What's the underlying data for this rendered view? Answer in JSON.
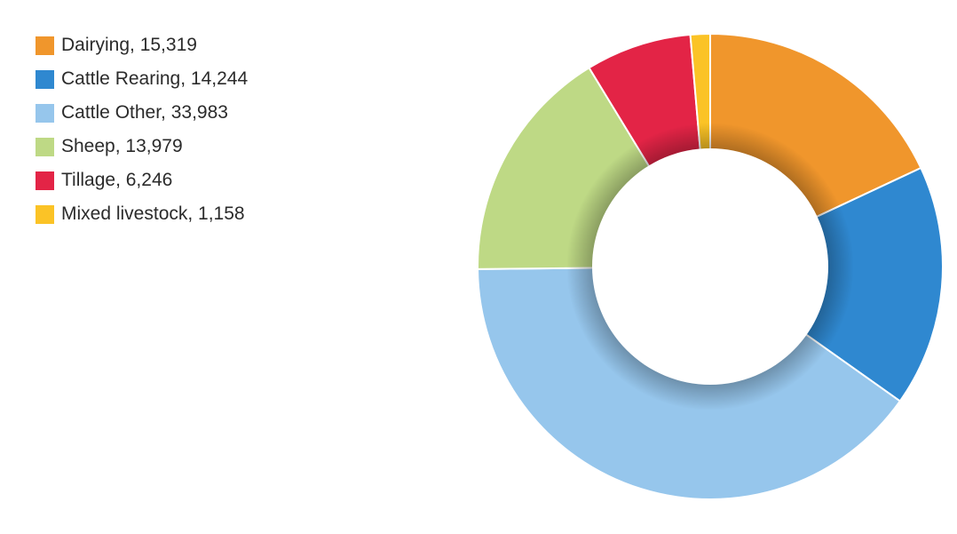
{
  "chart_data": {
    "type": "pie",
    "variant": "donut",
    "legend_position": "top-left",
    "series": [
      {
        "name": "Dairying",
        "label": "Dairying, 15,319",
        "value": 15319,
        "color": "#F0962C"
      },
      {
        "name": "Cattle Rearing",
        "label": "Cattle Rearing, 14,244",
        "value": 14244,
        "color": "#2F88D0"
      },
      {
        "name": "Cattle Other",
        "label": "Cattle Other, 33,983",
        "value": 33983,
        "color": "#96C6EC"
      },
      {
        "name": "Sheep",
        "label": "Sheep, 13,979",
        "value": 13979,
        "color": "#BED985"
      },
      {
        "name": "Tillage",
        "label": "Tillage, 6,246",
        "value": 6246,
        "color": "#E32446"
      },
      {
        "name": "Mixed livestock",
        "label": "Mixed livestock, 1,158",
        "value": 1158,
        "color": "#FBC326"
      }
    ]
  }
}
